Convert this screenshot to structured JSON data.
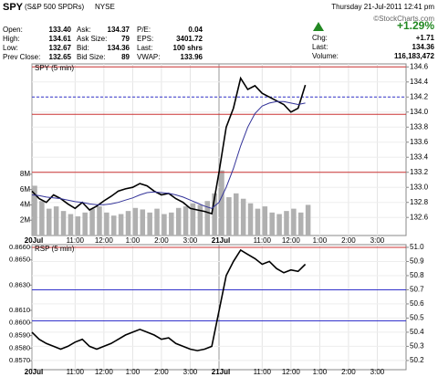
{
  "header": {
    "symbol": "SPY",
    "name": "(S&P 500 SPDRs)",
    "exchange": "NYSE",
    "datetime": "Thursday  21-Jul-2011  12:41 pm",
    "credit": "©StockCharts.com"
  },
  "quote": {
    "rows": [
      [
        "Open:",
        "133.40",
        "Ask:",
        "134.37",
        "P/E:",
        "0.04"
      ],
      [
        "High:",
        "134.61",
        "Ask Size:",
        "79",
        "EPS:",
        "3401.72"
      ],
      [
        "Low:",
        "132.67",
        "Bid:",
        "134.36",
        "Last:",
        "100 shrs"
      ],
      [
        "Prev Close:",
        "132.65",
        "Bid Size:",
        "89",
        "VWAP:",
        "133.96"
      ]
    ]
  },
  "change": {
    "pct": "+1.29%",
    "rows": [
      [
        "Chg:",
        "+1.71"
      ],
      [
        "Last:",
        "134.36"
      ],
      [
        "Volume:",
        "116,183,472"
      ]
    ]
  },
  "chart_data": [
    {
      "type": "line",
      "title": "SPY (5 min)",
      "x": [
        0,
        0.25,
        0.5,
        0.75,
        1,
        1.25,
        1.5,
        1.75,
        2,
        2.25,
        2.5,
        2.75,
        3,
        3.25,
        3.5,
        3.75,
        4,
        4.25,
        4.5,
        4.75,
        5,
        5.25,
        5.5,
        5.75,
        6,
        6.25,
        6.5,
        6.75,
        7,
        7.25,
        7.5,
        7.75,
        8,
        8.25,
        8.5,
        8.75,
        9,
        9.25,
        9.5
      ],
      "xlim": [
        0,
        13
      ],
      "xticks": [
        {
          "value": 0,
          "label": "20Jul"
        },
        {
          "value": 1.5,
          "label": "11:00"
        },
        {
          "value": 2.5,
          "label": "12:00"
        },
        {
          "value": 3.5,
          "label": "1:00"
        },
        {
          "value": 4.5,
          "label": "2:00"
        },
        {
          "value": 5.5,
          "label": "3:00"
        },
        {
          "value": 6.5,
          "label": "21Jul"
        },
        {
          "value": 8,
          "label": "11:00"
        },
        {
          "value": 9,
          "label": "12:00"
        },
        {
          "value": 10,
          "label": "1:00"
        },
        {
          "value": 11,
          "label": "2:00"
        },
        {
          "value": 12,
          "label": "3:00"
        }
      ],
      "ylim": [
        132.36,
        134.64
      ],
      "yticks": [
        {
          "value": 132.6,
          "label": "132.6"
        },
        {
          "value": 132.8,
          "label": "132.8"
        },
        {
          "value": 133,
          "label": "133.0"
        },
        {
          "value": 133.2,
          "label": "133.2"
        },
        {
          "value": 133.4,
          "label": "133.4"
        },
        {
          "value": 133.6,
          "label": "133.6"
        },
        {
          "value": 133.8,
          "label": "133.8"
        },
        {
          "value": 134,
          "label": "134.0"
        },
        {
          "value": 134.2,
          "label": "134.2"
        },
        {
          "value": 134.4,
          "label": "134.4"
        },
        {
          "value": 134.6,
          "label": "134.6"
        }
      ],
      "series": [
        {
          "color": "#000000",
          "values": [
            132.95,
            132.85,
            132.8,
            132.9,
            132.85,
            132.78,
            132.72,
            132.8,
            132.7,
            132.75,
            132.82,
            132.88,
            132.95,
            132.98,
            133.0,
            133.05,
            133.02,
            132.95,
            132.9,
            132.92,
            132.85,
            132.8,
            132.72,
            132.7,
            132.68,
            132.65,
            133.2,
            133.8,
            134.05,
            134.45,
            134.3,
            134.35,
            134.25,
            134.2,
            134.15,
            134.1,
            134.0,
            134.05,
            134.36
          ]
        },
        {
          "color": "#333399",
          "values": [
            132.9,
            132.89,
            132.87,
            132.86,
            132.85,
            132.83,
            132.81,
            132.8,
            132.78,
            132.77,
            132.77,
            132.78,
            132.8,
            132.83,
            132.86,
            132.9,
            132.93,
            132.94,
            132.93,
            132.92,
            132.9,
            132.87,
            132.83,
            132.79,
            132.75,
            132.72,
            132.8,
            133.0,
            133.25,
            133.55,
            133.8,
            133.98,
            134.08,
            134.12,
            134.14,
            134.14,
            134.12,
            134.1,
            134.12
          ]
        }
      ],
      "hlines": [
        {
          "value": 134.6,
          "color": "#cc3333"
        },
        {
          "value": 133.97,
          "color": "#cc3333"
        },
        {
          "value": 133.2,
          "color": "#cc3333"
        },
        {
          "value": 134.2,
          "color": "#3333cc",
          "dashed": true
        }
      ],
      "volume": {
        "color": "#b0b0b0",
        "ylim": [
          0,
          22.4
        ],
        "yticks": [
          {
            "value": 2,
            "label": "2M"
          },
          {
            "value": 4,
            "label": "4M"
          },
          {
            "value": 6,
            "label": "6M"
          },
          {
            "value": 8,
            "label": "8M"
          }
        ],
        "values": [
          6.5,
          4.5,
          3.5,
          3.8,
          3.2,
          2.8,
          2.5,
          3.0,
          3.5,
          3.8,
          3.0,
          2.6,
          2.8,
          3.2,
          3.6,
          3.4,
          3.0,
          3.5,
          2.8,
          3.0,
          3.6,
          3.8,
          4.2,
          4.0,
          4.5,
          5.5,
          8.5,
          5.0,
          5.5,
          4.8,
          4.2,
          3.5,
          3.8,
          3.0,
          2.8,
          3.2,
          3.5,
          3.0,
          4.0
        ]
      }
    },
    {
      "type": "line",
      "title": "RSP (5 min)",
      "x": [
        0,
        0.25,
        0.5,
        0.75,
        1,
        1.25,
        1.5,
        1.75,
        2,
        2.25,
        2.5,
        2.75,
        3,
        3.25,
        3.5,
        3.75,
        4,
        4.25,
        4.5,
        4.75,
        5,
        5.25,
        5.5,
        5.75,
        6,
        6.25,
        6.5,
        6.75,
        7,
        7.25,
        7.5,
        7.75,
        8,
        8.25,
        8.5,
        8.75,
        9,
        9.25,
        9.5
      ],
      "xlim": [
        0,
        13
      ],
      "xticks": [
        {
          "value": 0,
          "label": "20Jul"
        },
        {
          "value": 1.5,
          "label": "11:00"
        },
        {
          "value": 2.5,
          "label": "12:00"
        },
        {
          "value": 3.5,
          "label": "1:00"
        },
        {
          "value": 4.5,
          "label": "2:00"
        },
        {
          "value": 5.5,
          "label": "3:00"
        },
        {
          "value": 6.5,
          "label": "21Jul"
        },
        {
          "value": 8,
          "label": "11:00"
        },
        {
          "value": 9,
          "label": "12:00"
        },
        {
          "value": 10,
          "label": "1:00"
        },
        {
          "value": 11,
          "label": "2:00"
        },
        {
          "value": 12,
          "label": "3:00"
        }
      ],
      "ylim": [
        0.85629,
        0.86621
      ],
      "yticks": [
        {
          "value": 0.866,
          "label": "0.8660"
        },
        {
          "value": 0.865,
          "label": "0.8650"
        },
        {
          "value": 0.863,
          "label": "0.8630"
        },
        {
          "value": 0.861,
          "label": "0.8610"
        },
        {
          "value": 0.86,
          "label": "0.8600"
        },
        {
          "value": 0.859,
          "label": "0.8590"
        },
        {
          "value": 0.858,
          "label": "0.8580"
        },
        {
          "value": 0.857,
          "label": "0.8570"
        }
      ],
      "y2lim": [
        50.135,
        51.019
      ],
      "y2ticks": [
        {
          "value": 51,
          "label": "51.0"
        },
        50.9,
        50.8,
        50.7,
        50.6,
        50.5,
        50.4,
        50.3,
        50.2
      ],
      "series": [
        {
          "color": "#000000",
          "axis": "y2",
          "values": [
            50.4,
            50.35,
            50.32,
            50.3,
            50.28,
            50.3,
            50.33,
            50.35,
            50.3,
            50.28,
            50.3,
            50.32,
            50.35,
            50.38,
            50.4,
            50.42,
            50.4,
            50.38,
            50.35,
            50.36,
            50.32,
            50.3,
            50.28,
            50.27,
            50.28,
            50.3,
            50.55,
            50.8,
            50.9,
            50.98,
            50.95,
            50.92,
            50.88,
            50.9,
            50.85,
            50.82,
            50.84,
            50.83,
            50.88
          ]
        }
      ],
      "hlines": [
        {
          "value": 51.0,
          "color": "#cc3333",
          "axis": "y2"
        },
        {
          "value": 50.7,
          "color": "#3333cc",
          "axis": "y2"
        },
        {
          "value": 50.48,
          "color": "#3333cc",
          "axis": "y2"
        }
      ]
    }
  ]
}
